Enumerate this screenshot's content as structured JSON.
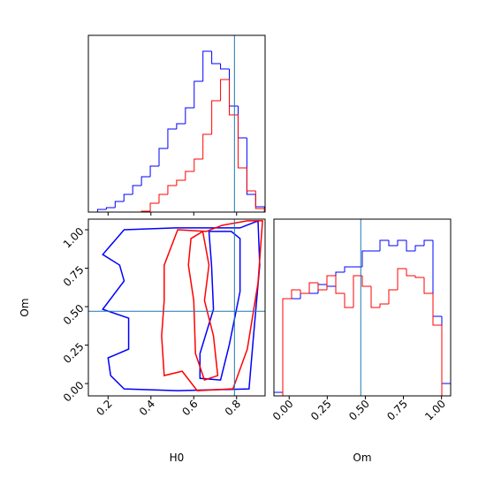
{
  "chart_data": [
    {
      "type": "histogram",
      "bins": [
        0.11,
        0.151,
        0.192,
        0.233,
        0.274,
        0.315,
        0.356,
        0.397,
        0.438,
        0.479,
        0.52,
        0.561,
        0.602,
        0.643,
        0.684,
        0.725,
        0.766,
        0.807,
        0.848,
        0.889,
        0.93
      ],
      "series": [
        {
          "color": "#0000ff",
          "values": [
            0,
            1.5,
            2.5,
            6,
            10,
            15,
            20,
            26,
            36,
            47,
            50,
            59,
            74,
            91,
            84,
            81,
            60,
            42,
            10,
            3
          ]
        },
        {
          "color": "#ff0000",
          "values": [
            0,
            0,
            0,
            0,
            0,
            0,
            0.5,
            5,
            10,
            15,
            18,
            23,
            30,
            44,
            63,
            75,
            55,
            25,
            12,
            2
          ]
        }
      ],
      "xlim": [
        0.108,
        0.933
      ],
      "xticks": [
        0.2,
        0.4,
        0.6,
        0.8
      ],
      "xtick_labels": false,
      "ylim": [
        0,
        100
      ],
      "truth_x": 0.79,
      "truth_color": "#1f77b4"
    },
    {
      "type": "contour",
      "xlabel": "H0",
      "ylabel": "Om",
      "xlim": [
        0.108,
        0.933
      ],
      "ylim": [
        -0.08,
        1.069
      ],
      "xticks": [
        0.2,
        0.4,
        0.6,
        0.8
      ],
      "yticks": [
        {
          "value": 0,
          "label": "0.00"
        },
        {
          "value": 0.25,
          "label": "0.25"
        },
        {
          "value": 0.5,
          "label": "0.50"
        },
        {
          "value": 0.75,
          "label": "0.75"
        },
        {
          "value": 1,
          "label": "1.00"
        }
      ],
      "series": [
        {
          "color": "#0000ff",
          "x": [
            0.275,
            0.516,
            0.816,
            0.9,
            0.908,
            0.879,
            0.858,
            0.525,
            0.275,
            0.212,
            0.2,
            0.296,
            0.296,
            0.175,
            0.275,
            0.254,
            0.175
          ],
          "y": [
            1.0,
            1.012,
            1.012,
            1.058,
            0.77,
            0.31,
            -0.035,
            -0.046,
            -0.035,
            0.052,
            0.167,
            0.224,
            0.425,
            0.483,
            0.667,
            0.77,
            0.839
          ]
        },
        {
          "color": "#0000ff",
          "x": [
            0.671,
            0.775,
            0.816,
            0.816,
            0.766,
            0.725,
            0.629,
            0.629,
            0.692,
            0.683
          ],
          "y": [
            0.989,
            0.989,
            0.943,
            0.598,
            0.253,
            0.023,
            0.034,
            0.195,
            0.483,
            0.77
          ]
        },
        {
          "color": "#ff0000",
          "x": [
            0.462,
            0.525,
            0.658,
            0.733,
            0.85,
            0.921,
            0.9,
            0.85,
            0.783,
            0.616,
            0.546,
            0.462,
            0.45,
            0.462
          ],
          "y": [
            0.77,
            1.0,
            0.989,
            1.029,
            1.058,
            1.058,
            0.655,
            0.224,
            -0.034,
            -0.046,
            0.08,
            0.052,
            0.31,
            0.54
          ]
        },
        {
          "color": "#ff0000",
          "x": [
            0.587,
            0.642,
            0.671,
            0.65,
            0.692,
            0.712,
            0.65,
            0.608,
            0.6,
            0.575
          ],
          "y": [
            0.943,
            0.989,
            0.77,
            0.54,
            0.31,
            0.052,
            0.023,
            0.195,
            0.54,
            0.77
          ]
        }
      ],
      "truth_x": 0.79,
      "truth_y": 0.47,
      "truth_color": "#1f77b4"
    },
    {
      "type": "histogram",
      "xlabel": "Om",
      "bins": [
        -0.1,
        -0.042,
        0.016,
        0.074,
        0.132,
        0.19,
        0.248,
        0.306,
        0.364,
        0.422,
        0.48,
        0.538,
        0.596,
        0.654,
        0.712,
        0.77,
        0.828,
        0.886,
        0.944,
        1.002,
        1.06
      ],
      "series": [
        {
          "color": "#0000ff",
          "values": [
            2,
            55,
            55,
            58,
            58,
            63,
            62,
            70,
            73,
            73,
            82,
            82,
            88,
            85,
            88,
            82,
            85,
            88,
            45,
            7
          ]
        },
        {
          "color": "#ff0000",
          "values": [
            0,
            55,
            60,
            58,
            64,
            60,
            68,
            58,
            50,
            68,
            62,
            50,
            52,
            60,
            72,
            68,
            67,
            58,
            40,
            0
          ]
        }
      ],
      "xlim": [
        -0.1,
        1.06
      ],
      "xticks": [
        {
          "value": 0,
          "label": "0.00"
        },
        {
          "value": 0.25,
          "label": "0.25"
        },
        {
          "value": 0.5,
          "label": "0.50"
        },
        {
          "value": 0.75,
          "label": "0.75"
        },
        {
          "value": 1,
          "label": "1.00"
        }
      ],
      "ylim": [
        0,
        100
      ],
      "truth_x": 0.47,
      "truth_color": "#1f77b4"
    }
  ]
}
